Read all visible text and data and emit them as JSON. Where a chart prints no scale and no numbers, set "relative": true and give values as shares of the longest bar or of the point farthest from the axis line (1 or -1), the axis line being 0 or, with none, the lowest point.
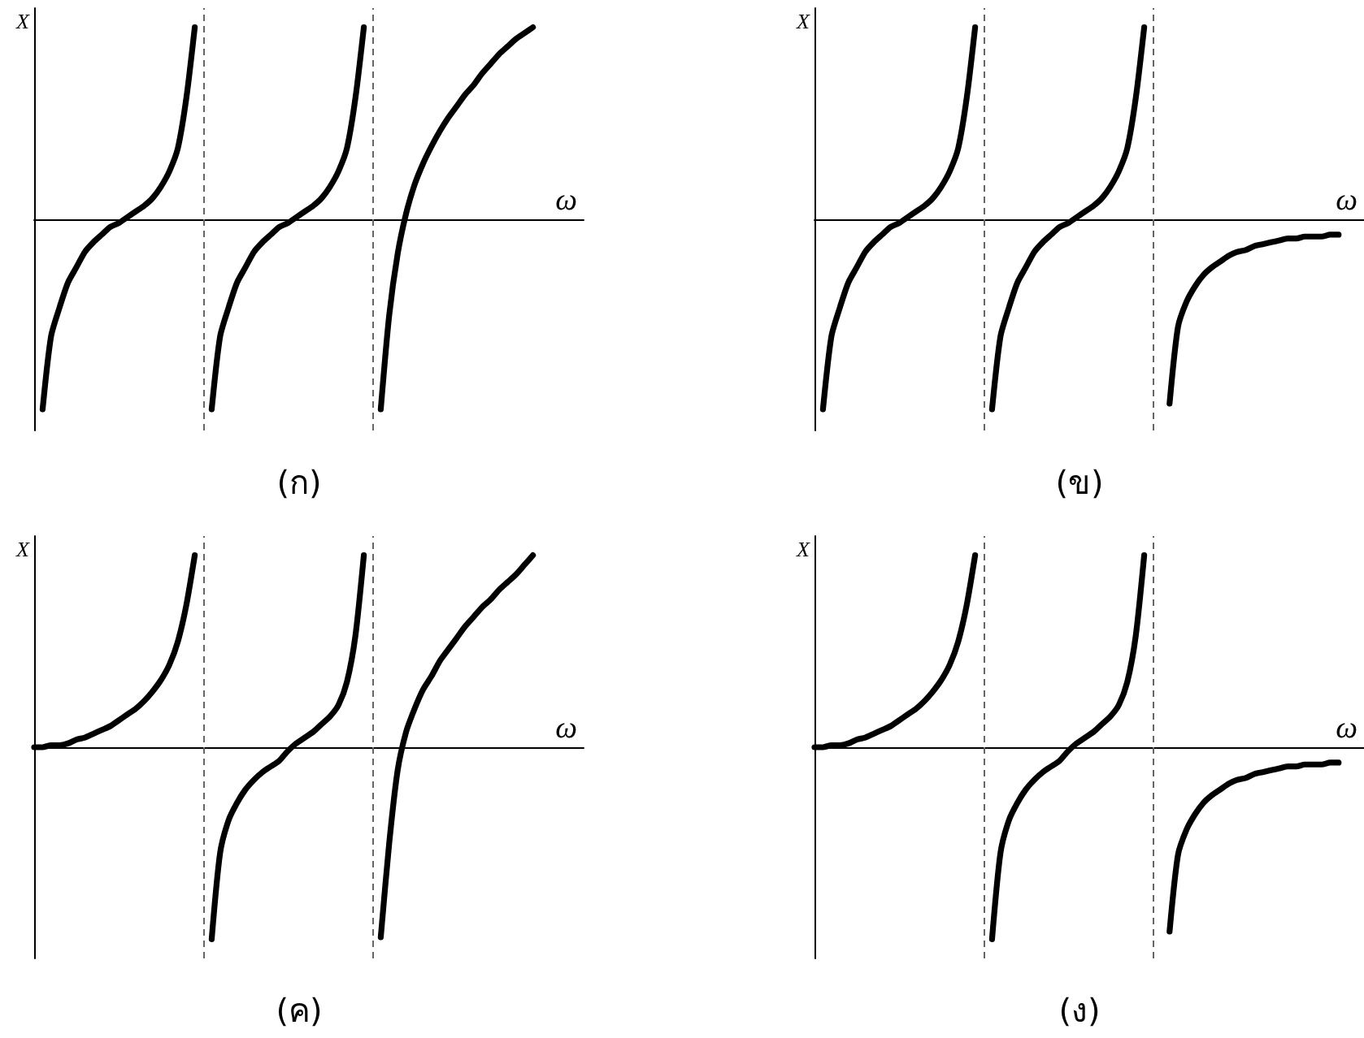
{
  "chart_data": [
    {
      "type": "line",
      "title": "(ก)",
      "xlabel": "ω",
      "ylabel": "X",
      "relative": true,
      "categories": [
        null,
        null,
        null,
        null,
        null,
        null,
        null,
        null,
        null,
        null,
        null,
        null,
        null,
        null,
        null,
        null,
        null,
        null,
        null,
        null,
        null,
        null,
        null,
        null,
        null,
        null,
        null,
        null,
        null,
        null,
        null,
        null,
        null,
        null,
        null,
        null,
        null,
        null,
        null,
        null,
        null,
        null,
        null,
        null,
        null,
        null,
        null,
        null,
        null,
        null,
        null,
        null,
        null,
        null,
        null,
        null,
        null,
        null,
        null,
        null,
        null,
        null,
        null,
        null,
        null,
        null
      ],
      "series": [
        {
          "color": "#000000",
          "values": [
            null,
            -0.99,
            -0.61,
            -0.46,
            -0.33,
            -0.25,
            -0.17,
            -0.12,
            -0.08,
            -0.04,
            -0.02,
            0.01,
            0.04,
            0.07,
            0.11,
            0.17,
            0.25,
            0.37,
            0.63,
            1.0,
            null,
            null,
            null,
            null,
            null,
            null,
            null,
            null,
            null,
            null,
            null,
            null,
            null,
            null,
            null,
            null,
            null,
            null,
            null,
            null,
            null,
            null,
            null,
            null,
            null,
            null,
            null,
            null,
            null,
            null,
            null,
            null,
            null,
            null,
            null,
            null,
            null,
            null,
            null,
            null,
            null,
            null,
            null,
            null,
            null,
            null
          ]
        },
        {
          "color": "#000000",
          "values": [
            null,
            null,
            null,
            null,
            null,
            null,
            null,
            null,
            null,
            null,
            null,
            null,
            null,
            null,
            null,
            null,
            null,
            null,
            null,
            null,
            null,
            -0.99,
            -0.61,
            -0.46,
            -0.33,
            -0.25,
            -0.17,
            -0.12,
            -0.08,
            -0.04,
            -0.02,
            0.01,
            0.04,
            0.07,
            0.11,
            0.17,
            0.25,
            0.37,
            0.63,
            1.0,
            null,
            null,
            null,
            null,
            null,
            null,
            null,
            null,
            null,
            null,
            null,
            null,
            null,
            null,
            null,
            null,
            null,
            null,
            null,
            null,
            null,
            null,
            null,
            null,
            null,
            null
          ]
        },
        {
          "color": "#000000",
          "values": [
            null,
            null,
            null,
            null,
            null,
            null,
            null,
            null,
            null,
            null,
            null,
            null,
            null,
            null,
            null,
            null,
            null,
            null,
            null,
            null,
            null,
            null,
            null,
            null,
            null,
            null,
            null,
            null,
            null,
            null,
            null,
            null,
            null,
            null,
            null,
            null,
            null,
            null,
            null,
            null,
            null,
            -0.99,
            -0.5,
            -0.18,
            0.03,
            0.18,
            0.29,
            0.38,
            0.46,
            0.53,
            0.59,
            0.65,
            0.7,
            0.76,
            0.81,
            0.86,
            0.9,
            0.94,
            0.97,
            1.0,
            null,
            null,
            null,
            null,
            null,
            null
          ]
        }
      ]
    },
    {
      "type": "line",
      "title": "(ข)",
      "xlabel": "ω",
      "ylabel": "X",
      "relative": true,
      "categories": [
        null,
        null,
        null,
        null,
        null,
        null,
        null,
        null,
        null,
        null,
        null,
        null,
        null,
        null,
        null,
        null,
        null,
        null,
        null,
        null,
        null,
        null,
        null,
        null,
        null,
        null,
        null,
        null,
        null,
        null,
        null,
        null,
        null,
        null,
        null,
        null,
        null,
        null,
        null,
        null,
        null,
        null,
        null,
        null,
        null,
        null,
        null,
        null,
        null,
        null,
        null,
        null,
        null,
        null,
        null,
        null,
        null,
        null,
        null,
        null,
        null,
        null,
        null,
        null,
        null,
        null
      ],
      "series": [
        {
          "color": "#000000",
          "values": [
            null,
            -0.99,
            -0.61,
            -0.46,
            -0.33,
            -0.25,
            -0.17,
            -0.12,
            -0.08,
            -0.04,
            -0.02,
            0.01,
            0.04,
            0.07,
            0.11,
            0.17,
            0.25,
            0.37,
            0.63,
            1.0,
            null,
            null,
            null,
            null,
            null,
            null,
            null,
            null,
            null,
            null,
            null,
            null,
            null,
            null,
            null,
            null,
            null,
            null,
            null,
            null,
            null,
            null,
            null,
            null,
            null,
            null,
            null,
            null,
            null,
            null,
            null,
            null,
            null,
            null,
            null,
            null,
            null,
            null,
            null,
            null,
            null,
            null,
            null,
            null,
            null,
            null
          ]
        },
        {
          "color": "#000000",
          "values": [
            null,
            null,
            null,
            null,
            null,
            null,
            null,
            null,
            null,
            null,
            null,
            null,
            null,
            null,
            null,
            null,
            null,
            null,
            null,
            null,
            null,
            -0.99,
            -0.61,
            -0.46,
            -0.33,
            -0.25,
            -0.17,
            -0.12,
            -0.08,
            -0.04,
            -0.02,
            0.01,
            0.04,
            0.07,
            0.11,
            0.17,
            0.25,
            0.37,
            0.63,
            1.0,
            null,
            null,
            null,
            null,
            null,
            null,
            null,
            null,
            null,
            null,
            null,
            null,
            null,
            null,
            null,
            null,
            null,
            null,
            null,
            null,
            null,
            null,
            null,
            null,
            null,
            null
          ]
        },
        {
          "color": "#000000",
          "values": [
            null,
            null,
            null,
            null,
            null,
            null,
            null,
            null,
            null,
            null,
            null,
            null,
            null,
            null,
            null,
            null,
            null,
            null,
            null,
            null,
            null,
            null,
            null,
            null,
            null,
            null,
            null,
            null,
            null,
            null,
            null,
            null,
            null,
            null,
            null,
            null,
            null,
            null,
            null,
            null,
            null,
            null,
            -0.96,
            -0.56,
            -0.43,
            -0.35,
            -0.29,
            -0.25,
            -0.22,
            -0.19,
            -0.17,
            -0.16,
            -0.14,
            -0.13,
            -0.12,
            -0.11,
            -0.1,
            -0.1,
            -0.09,
            -0.09,
            -0.09,
            -0.08,
            -0.08,
            null,
            null,
            null
          ]
        }
      ]
    },
    {
      "type": "line",
      "title": "(ค)",
      "xlabel": "ω",
      "ylabel": "X",
      "relative": true,
      "categories": [
        null,
        null,
        null,
        null,
        null,
        null,
        null,
        null,
        null,
        null,
        null,
        null,
        null,
        null,
        null,
        null,
        null,
        null,
        null,
        null,
        null,
        null,
        null,
        null,
        null,
        null,
        null,
        null,
        null,
        null,
        null,
        null,
        null,
        null,
        null,
        null,
        null,
        null,
        null,
        null,
        null,
        null,
        null,
        null,
        null,
        null,
        null,
        null,
        null,
        null,
        null,
        null,
        null,
        null,
        null,
        null,
        null,
        null,
        null,
        null,
        null,
        null,
        null,
        null,
        null,
        null
      ],
      "series": [
        {
          "color": "#000000",
          "values": [
            0,
            0,
            0.01,
            0.01,
            0.02,
            0.04,
            0.05,
            0.07,
            0.09,
            0.11,
            0.14,
            0.17,
            0.2,
            0.24,
            0.29,
            0.35,
            0.43,
            0.55,
            0.74,
            1.0,
            null,
            null,
            null,
            null,
            null,
            null,
            null,
            null,
            null,
            null,
            null,
            null,
            null,
            null,
            null,
            null,
            null,
            null,
            null,
            null,
            null,
            null,
            null,
            null,
            null,
            null,
            null,
            null,
            null,
            null,
            null,
            null,
            null,
            null,
            null,
            null,
            null,
            null,
            null,
            null,
            null,
            null,
            null,
            null,
            null,
            null
          ]
        },
        {
          "color": "#000000",
          "values": [
            null,
            null,
            null,
            null,
            null,
            null,
            null,
            null,
            null,
            null,
            null,
            null,
            null,
            null,
            null,
            null,
            null,
            null,
            null,
            null,
            null,
            -1.0,
            -0.55,
            -0.38,
            -0.29,
            -0.22,
            -0.17,
            -0.13,
            -0.1,
            -0.07,
            -0.02,
            0.02,
            0.05,
            0.08,
            0.12,
            0.16,
            0.22,
            0.34,
            0.58,
            1.0,
            null,
            null,
            null,
            null,
            null,
            null,
            null,
            null,
            null,
            null,
            null,
            null,
            null,
            null,
            null,
            null,
            null,
            null,
            null,
            null,
            null,
            null,
            null,
            null,
            null,
            null
          ]
        },
        {
          "color": "#000000",
          "values": [
            null,
            null,
            null,
            null,
            null,
            null,
            null,
            null,
            null,
            null,
            null,
            null,
            null,
            null,
            null,
            null,
            null,
            null,
            null,
            null,
            null,
            null,
            null,
            null,
            null,
            null,
            null,
            null,
            null,
            null,
            null,
            null,
            null,
            null,
            null,
            null,
            null,
            null,
            null,
            null,
            null,
            -0.99,
            -0.5,
            -0.12,
            0.08,
            0.2,
            0.3,
            0.37,
            0.45,
            0.51,
            0.57,
            0.63,
            0.68,
            0.73,
            0.77,
            0.82,
            0.86,
            0.9,
            0.95,
            1.0,
            null,
            null,
            null,
            null,
            null,
            null
          ]
        }
      ]
    },
    {
      "type": "line",
      "title": "(ง)",
      "xlabel": "ω",
      "ylabel": "X",
      "relative": true,
      "categories": [
        null,
        null,
        null,
        null,
        null,
        null,
        null,
        null,
        null,
        null,
        null,
        null,
        null,
        null,
        null,
        null,
        null,
        null,
        null,
        null,
        null,
        null,
        null,
        null,
        null,
        null,
        null,
        null,
        null,
        null,
        null,
        null,
        null,
        null,
        null,
        null,
        null,
        null,
        null,
        null,
        null,
        null,
        null,
        null,
        null,
        null,
        null,
        null,
        null,
        null,
        null,
        null,
        null,
        null,
        null,
        null,
        null,
        null,
        null,
        null,
        null,
        null,
        null,
        null,
        null,
        null
      ],
      "series": [
        {
          "color": "#000000",
          "values": [
            0,
            0,
            0.01,
            0.01,
            0.02,
            0.04,
            0.05,
            0.07,
            0.09,
            0.11,
            0.14,
            0.17,
            0.2,
            0.24,
            0.29,
            0.35,
            0.43,
            0.55,
            0.74,
            1.0,
            null,
            null,
            null,
            null,
            null,
            null,
            null,
            null,
            null,
            null,
            null,
            null,
            null,
            null,
            null,
            null,
            null,
            null,
            null,
            null,
            null,
            null,
            null,
            null,
            null,
            null,
            null,
            null,
            null,
            null,
            null,
            null,
            null,
            null,
            null,
            null,
            null,
            null,
            null,
            null,
            null,
            null,
            null,
            null,
            null,
            null
          ]
        },
        {
          "color": "#000000",
          "values": [
            null,
            null,
            null,
            null,
            null,
            null,
            null,
            null,
            null,
            null,
            null,
            null,
            null,
            null,
            null,
            null,
            null,
            null,
            null,
            null,
            null,
            -1.0,
            -0.55,
            -0.38,
            -0.29,
            -0.22,
            -0.17,
            -0.13,
            -0.1,
            -0.07,
            -0.02,
            0.02,
            0.05,
            0.08,
            0.12,
            0.16,
            0.22,
            0.34,
            0.58,
            1.0,
            null,
            null,
            null,
            null,
            null,
            null,
            null,
            null,
            null,
            null,
            null,
            null,
            null,
            null,
            null,
            null,
            null,
            null,
            null,
            null,
            null,
            null,
            null,
            null,
            null,
            null
          ]
        },
        {
          "color": "#000000",
          "values": [
            null,
            null,
            null,
            null,
            null,
            null,
            null,
            null,
            null,
            null,
            null,
            null,
            null,
            null,
            null,
            null,
            null,
            null,
            null,
            null,
            null,
            null,
            null,
            null,
            null,
            null,
            null,
            null,
            null,
            null,
            null,
            null,
            null,
            null,
            null,
            null,
            null,
            null,
            null,
            null,
            null,
            null,
            -0.96,
            -0.56,
            -0.43,
            -0.35,
            -0.29,
            -0.25,
            -0.22,
            -0.19,
            -0.17,
            -0.16,
            -0.14,
            -0.13,
            -0.12,
            -0.11,
            -0.1,
            -0.1,
            -0.09,
            -0.09,
            -0.09,
            -0.08,
            -0.08,
            null,
            null,
            null
          ]
        }
      ]
    }
  ]
}
